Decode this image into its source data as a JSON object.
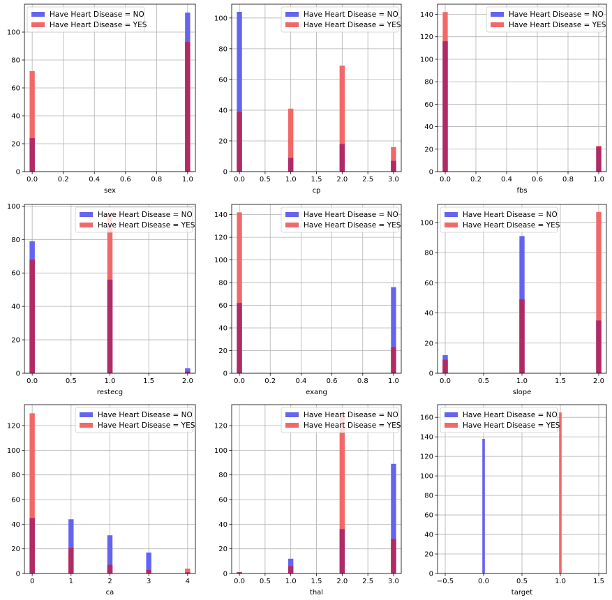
{
  "legend": {
    "no_label": "Have Heart Disease = NO",
    "yes_label": "Have Heart Disease = YES"
  },
  "colors": {
    "no": "#6464f0",
    "yes": "#f26868",
    "overlap": "#b02a66",
    "grid": "#b0b0b0",
    "frame": "#000000"
  },
  "chart_data": [
    {
      "type": "bar",
      "xlabel": "sex",
      "xlim": [
        -0.05,
        1.05
      ],
      "ylim": [
        0,
        120
      ],
      "xticks": [
        0.0,
        0.2,
        0.4,
        0.6,
        0.8,
        1.0
      ],
      "xtick_labels": [
        "0.0",
        "0.2",
        "0.4",
        "0.6",
        "0.8",
        "1.0"
      ],
      "yticks": [
        0,
        20,
        40,
        60,
        80,
        100
      ],
      "bar_width": 0.033,
      "legend": "top-left",
      "grid": true,
      "series": [
        {
          "name": "Have Heart Disease = NO",
          "x": [
            0,
            1
          ],
          "values": [
            24,
            114
          ]
        },
        {
          "name": "Have Heart Disease = YES",
          "x": [
            0,
            1
          ],
          "values": [
            72,
            93
          ]
        }
      ]
    },
    {
      "type": "bar",
      "xlabel": "cp",
      "xlim": [
        -0.15,
        3.15
      ],
      "ylim": [
        0,
        109
      ],
      "xticks": [
        0.0,
        0.5,
        1.0,
        1.5,
        2.0,
        2.5,
        3.0
      ],
      "xtick_labels": [
        "0.0",
        "0.5",
        "1.0",
        "1.5",
        "2.0",
        "2.5",
        "3.0"
      ],
      "yticks": [
        0,
        20,
        40,
        60,
        80,
        100
      ],
      "bar_width": 0.1,
      "legend": "top-right",
      "grid": true,
      "series": [
        {
          "name": "Have Heart Disease = NO",
          "x": [
            0,
            1,
            2,
            3
          ],
          "values": [
            104,
            9,
            18,
            7
          ]
        },
        {
          "name": "Have Heart Disease = YES",
          "x": [
            0,
            1,
            2,
            3
          ],
          "values": [
            39,
            41,
            69,
            16
          ]
        }
      ]
    },
    {
      "type": "bar",
      "xlabel": "fbs",
      "xlim": [
        -0.05,
        1.05
      ],
      "ylim": [
        0,
        149
      ],
      "xticks": [
        0.0,
        0.2,
        0.4,
        0.6,
        0.8,
        1.0
      ],
      "xtick_labels": [
        "0.0",
        "0.2",
        "0.4",
        "0.6",
        "0.8",
        "1.0"
      ],
      "yticks": [
        0,
        20,
        40,
        60,
        80,
        100,
        120,
        140
      ],
      "bar_width": 0.033,
      "legend": "top-right",
      "grid": true,
      "series": [
        {
          "name": "Have Heart Disease = NO",
          "x": [
            0,
            1
          ],
          "values": [
            116,
            22
          ]
        },
        {
          "name": "Have Heart Disease = YES",
          "x": [
            0,
            1
          ],
          "values": [
            142,
            23
          ]
        }
      ]
    },
    {
      "type": "bar",
      "xlabel": "restecg",
      "xlim": [
        -0.1,
        2.1
      ],
      "ylim": [
        0,
        101
      ],
      "xticks": [
        0.0,
        0.5,
        1.0,
        1.5,
        2.0
      ],
      "xtick_labels": [
        "0.0",
        "0.5",
        "1.0",
        "1.5",
        "2.0"
      ],
      "yticks": [
        0,
        20,
        40,
        60,
        80,
        100
      ],
      "bar_width": 0.067,
      "legend": "top-right",
      "grid": true,
      "series": [
        {
          "name": "Have Heart Disease = NO",
          "x": [
            0,
            1,
            2
          ],
          "values": [
            79,
            56,
            3
          ]
        },
        {
          "name": "Have Heart Disease = YES",
          "x": [
            0,
            1,
            2
          ],
          "values": [
            68,
            96,
            1
          ]
        }
      ]
    },
    {
      "type": "bar",
      "xlabel": "exang",
      "xlim": [
        -0.05,
        1.05
      ],
      "ylim": [
        0,
        149
      ],
      "xticks": [
        0.0,
        0.2,
        0.4,
        0.6,
        0.8,
        1.0
      ],
      "xtick_labels": [
        "0.0",
        "0.2",
        "0.4",
        "0.6",
        "0.8",
        "1.0"
      ],
      "yticks": [
        0,
        20,
        40,
        60,
        80,
        100,
        120,
        140
      ],
      "bar_width": 0.033,
      "legend": "top-right",
      "grid": true,
      "series": [
        {
          "name": "Have Heart Disease = NO",
          "x": [
            0,
            1
          ],
          "values": [
            62,
            76
          ]
        },
        {
          "name": "Have Heart Disease = YES",
          "x": [
            0,
            1
          ],
          "values": [
            142,
            23
          ]
        }
      ]
    },
    {
      "type": "bar",
      "xlabel": "slope",
      "xlim": [
        -0.1,
        2.1
      ],
      "ylim": [
        0,
        112
      ],
      "xticks": [
        0.0,
        0.5,
        1.0,
        1.5,
        2.0
      ],
      "xtick_labels": [
        "0.0",
        "0.5",
        "1.0",
        "1.5",
        "2.0"
      ],
      "yticks": [
        0,
        20,
        40,
        60,
        80,
        100
      ],
      "bar_width": 0.067,
      "legend": "top-left",
      "grid": true,
      "series": [
        {
          "name": "Have Heart Disease = NO",
          "x": [
            0,
            1,
            2
          ],
          "values": [
            12,
            91,
            35
          ]
        },
        {
          "name": "Have Heart Disease = YES",
          "x": [
            0,
            1,
            2
          ],
          "values": [
            9,
            49,
            107
          ]
        }
      ]
    },
    {
      "type": "bar",
      "xlabel": "ca",
      "xlim": [
        -0.2,
        4.2
      ],
      "ylim": [
        0,
        137
      ],
      "xticks": [
        0,
        1,
        2,
        3,
        4
      ],
      "xtick_labels": [
        "0",
        "1",
        "2",
        "3",
        "4"
      ],
      "yticks": [
        0,
        20,
        40,
        60,
        80,
        100,
        120
      ],
      "bar_width": 0.133,
      "legend": "top-right",
      "grid": true,
      "series": [
        {
          "name": "Have Heart Disease = NO",
          "x": [
            0,
            1,
            2,
            3,
            4
          ],
          "values": [
            45,
            44,
            31,
            17,
            1
          ]
        },
        {
          "name": "Have Heart Disease = YES",
          "x": [
            0,
            1,
            2,
            3,
            4
          ],
          "values": [
            130,
            21,
            7,
            3,
            4
          ]
        }
      ]
    },
    {
      "type": "bar",
      "xlabel": "thal",
      "xlim": [
        -0.15,
        3.15
      ],
      "ylim": [
        0,
        137
      ],
      "xticks": [
        0.0,
        0.5,
        1.0,
        1.5,
        2.0,
        2.5,
        3.0
      ],
      "xtick_labels": [
        "0.0",
        "0.5",
        "1.0",
        "1.5",
        "2.0",
        "2.5",
        "3.0"
      ],
      "yticks": [
        0,
        20,
        40,
        60,
        80,
        100,
        120
      ],
      "bar_width": 0.1,
      "legend": "top-right",
      "grid": true,
      "series": [
        {
          "name": "Have Heart Disease = NO",
          "x": [
            0,
            1,
            2,
            3
          ],
          "values": [
            1,
            12,
            36,
            89
          ]
        },
        {
          "name": "Have Heart Disease = YES",
          "x": [
            0,
            1,
            2,
            3
          ],
          "values": [
            1,
            6,
            130,
            28
          ]
        }
      ]
    },
    {
      "type": "bar",
      "xlabel": "target",
      "xlim": [
        -0.6,
        1.6
      ],
      "ylim": [
        0,
        173
      ],
      "xticks": [
        -0.5,
        0.0,
        0.5,
        1.0,
        1.5
      ],
      "xtick_labels": [
        "−0.5",
        "0.0",
        "0.5",
        "1.0",
        "1.5"
      ],
      "yticks": [
        0,
        20,
        40,
        60,
        80,
        100,
        120,
        140,
        160
      ],
      "bar_width": 0.033,
      "legend": "top-left",
      "grid": true,
      "series": [
        {
          "name": "Have Heart Disease = NO",
          "x": [
            0
          ],
          "values": [
            138
          ]
        },
        {
          "name": "Have Heart Disease = YES",
          "x": [
            1
          ],
          "values": [
            165
          ]
        }
      ]
    }
  ]
}
